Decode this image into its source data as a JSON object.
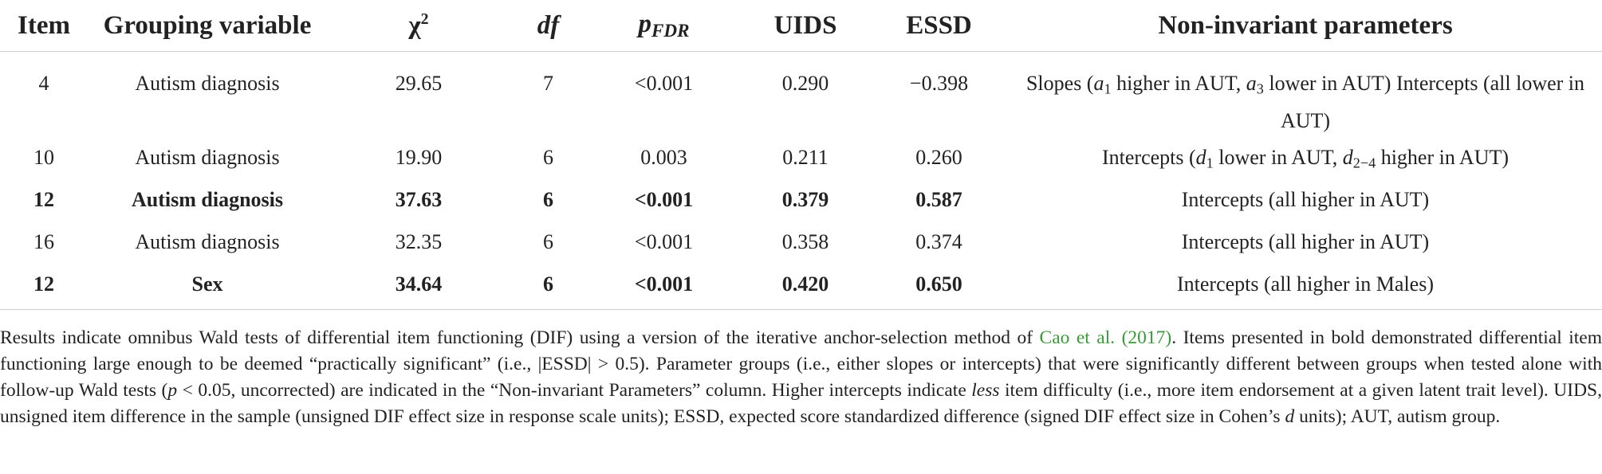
{
  "table": {
    "headers": {
      "item": "Item",
      "grouping": "Grouping variable",
      "chi_base": "χ",
      "chi_sup": "2",
      "df": "df",
      "p_base": "p",
      "p_sub": "FDR",
      "uids": "UIDS",
      "essd": "ESSD",
      "params": "Non-invariant parameters"
    },
    "rows": [
      {
        "item": "4",
        "grouping": "Autism diagnosis",
        "chi2": "29.65",
        "df": "7",
        "p": "<0.001",
        "uids": "0.290",
        "essd": "−0.398",
        "params": {
          "p1": "Slopes (",
          "a1": "a",
          "a1_sub": "1",
          "p2": " higher in AUT, ",
          "a3": "a",
          "a3_sub": "3",
          "p3": " lower in AUT) Intercepts (all lower in AUT)"
        }
      },
      {
        "item": "10",
        "grouping": "Autism diagnosis",
        "chi2": "19.90",
        "df": "6",
        "p": "0.003",
        "uids": "0.211",
        "essd": "0.260",
        "params": {
          "p1": "Intercepts (",
          "d1": "d",
          "d1_sub": "1",
          "p2": " lower in AUT, ",
          "d2": "d",
          "d2_sub": "2−4",
          "p3": " higher in AUT)"
        }
      },
      {
        "item": "12",
        "grouping": "Autism diagnosis",
        "chi2": "37.63",
        "df": "6",
        "p": "<0.001",
        "uids": "0.379",
        "essd": "0.587",
        "params": {
          "text": "Intercepts (all higher in AUT)"
        }
      },
      {
        "item": "16",
        "grouping": "Autism diagnosis",
        "chi2": "32.35",
        "df": "6",
        "p": "<0.001",
        "uids": "0.358",
        "essd": "0.374",
        "params": {
          "text": "Intercepts (all higher in AUT)"
        }
      },
      {
        "item": "12",
        "grouping": "Sex",
        "chi2": "34.64",
        "df": "6",
        "p": "<0.001",
        "uids": "0.420",
        "essd": "0.650",
        "params": {
          "text": "Intercepts (all higher in Males)"
        }
      }
    ]
  },
  "note": {
    "t1": "Results indicate omnibus Wald tests of differential item functioning (DIF) using a version of the iterative anchor-selection method of ",
    "cite": "Cao et al. (2017)",
    "t2": ". Items presented in bold demonstrated differential item functioning large enough to be deemed “practically significant” (i.e., |ESSD| > 0.5). Parameter groups (i.e., either slopes or intercepts) that were significantly different between groups when tested alone with follow-up Wald tests (",
    "p": "p",
    "t3": " < 0.05, uncorrected) are indicated in the “Non-invariant Parameters” column. Higher intercepts indicate ",
    "less": "less",
    "t4": " item difficulty (i.e., more item endorsement at a given latent trait level). UIDS, unsigned item difference in the sample (unsigned DIF effect size in response scale units); ESSD, expected score standardized difference (signed DIF effect size in Cohen’s ",
    "d": "d",
    "t5": " units); AUT, autism group."
  }
}
